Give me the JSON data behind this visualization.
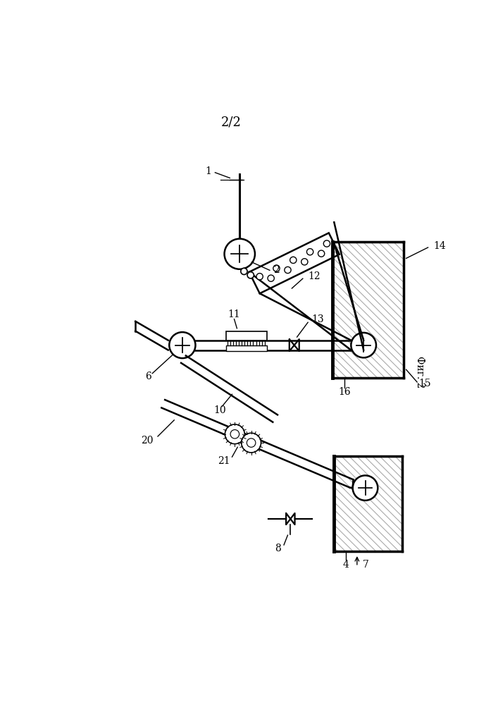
{
  "title": "2/2",
  "fig_label": "Фиг. 2",
  "background": "#ffffff",
  "line_color": "#000000",
  "hatch_color": "#999999",
  "lw_main": 1.8,
  "lw_thin": 1.0,
  "lw_border": 2.2
}
